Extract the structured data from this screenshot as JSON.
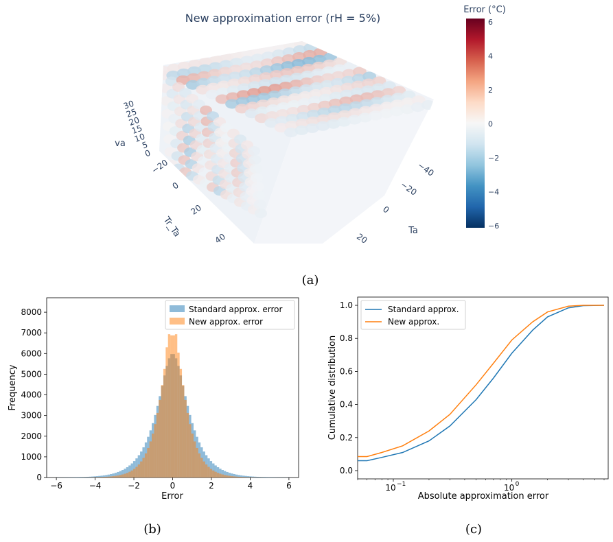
{
  "panels": {
    "a_label": "(a)",
    "b_label": "(b)",
    "c_label": "(c)"
  },
  "chart_data": [
    {
      "type": "heatmap",
      "panel": "a",
      "title": "New approximation error (rH = 5%)",
      "axes": {
        "va": {
          "label": "va",
          "ticks": [
            "0",
            "5",
            "10",
            "15",
            "20",
            "25",
            "30"
          ]
        },
        "tr_ta": {
          "label": "Tr_Ta",
          "ticks": [
            "−20",
            "0",
            "20",
            "40"
          ]
        },
        "ta": {
          "label": "Ta",
          "ticks": [
            "−40",
            "−20",
            "0",
            "20"
          ]
        }
      },
      "colorbar": {
        "title": "Error (°C)",
        "ticks": [
          "6",
          "4",
          "2",
          "0",
          "−2",
          "−4",
          "−6"
        ],
        "range": [
          -6,
          6
        ],
        "colorscale": [
          "#67001f",
          "#b2182b",
          "#d6604d",
          "#f4a582",
          "#fddbc7",
          "#f7f7f7",
          "#d1e5f0",
          "#92c5de",
          "#4393c3",
          "#2166ac",
          "#053061"
        ]
      },
      "stripes": [
        0.3,
        -0.8,
        1.2,
        -1.5,
        0.8,
        -0.5,
        1.5,
        -1.2,
        0.6,
        -0.4,
        1.0,
        -0.8,
        0.4,
        -0.3
      ]
    },
    {
      "type": "bar",
      "panel": "b",
      "xlabel": "Error",
      "ylabel": "Frequency",
      "xlim": [
        -6.5,
        6.5
      ],
      "ylim": [
        0,
        8700
      ],
      "xticks": [
        -6,
        -4,
        -2,
        0,
        2,
        4,
        6
      ],
      "xtick_labels": [
        "−6",
        "−4",
        "−2",
        "0",
        "2",
        "4",
        "6"
      ],
      "yticks": [
        0,
        1000,
        2000,
        3000,
        4000,
        5000,
        6000,
        7000,
        8000
      ],
      "bin_width": 0.12,
      "series": [
        {
          "name": "Standard approx. error",
          "color": "#1f77b4",
          "alpha": 0.5,
          "mu": 0.0,
          "sigma": 0.95,
          "peak": 6000
        },
        {
          "name": "New approx. error",
          "color": "#ff7f0e",
          "alpha": 0.5,
          "mu": 0.0,
          "sigma": 0.72,
          "peak": 7200
        }
      ]
    },
    {
      "type": "line",
      "panel": "c",
      "xlabel": "Absolute approximation error",
      "ylabel": "Cumulative distribution",
      "xscale": "log",
      "xlim": [
        0.05,
        6.5
      ],
      "ylim": [
        -0.05,
        1.05
      ],
      "xtick_labels": [
        "10",
        "10"
      ],
      "xtick_exponents": [
        "−1",
        "0"
      ],
      "xticks": [
        0.1,
        1
      ],
      "yticks": [
        0.0,
        0.2,
        0.4,
        0.6,
        0.8,
        1.0
      ],
      "ytick_labels": [
        "0.0",
        "0.2",
        "0.4",
        "0.6",
        "0.8",
        "1.0"
      ],
      "series": [
        {
          "name": "Standard approx.",
          "color": "#1f77b4",
          "x": [
            0.05,
            0.06,
            0.08,
            0.12,
            0.2,
            0.3,
            0.5,
            0.7,
            1.0,
            1.5,
            2.0,
            3.0,
            4.0,
            6.0
          ],
          "y": [
            0.06,
            0.06,
            0.08,
            0.11,
            0.18,
            0.27,
            0.43,
            0.56,
            0.71,
            0.85,
            0.93,
            0.985,
            0.998,
            1.0
          ]
        },
        {
          "name": "New approx.",
          "color": "#ff7f0e",
          "x": [
            0.05,
            0.06,
            0.08,
            0.12,
            0.2,
            0.3,
            0.5,
            0.7,
            1.0,
            1.5,
            2.0,
            3.0,
            4.0,
            6.0
          ],
          "y": [
            0.085,
            0.085,
            0.11,
            0.15,
            0.24,
            0.34,
            0.52,
            0.65,
            0.79,
            0.9,
            0.96,
            0.995,
            1.0,
            1.0
          ]
        }
      ]
    }
  ]
}
